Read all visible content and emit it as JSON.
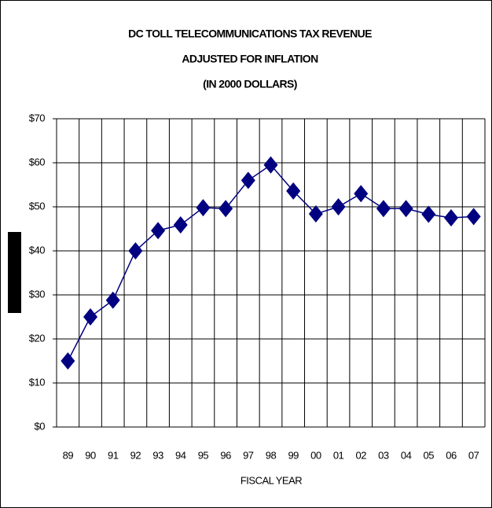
{
  "chart_data": {
    "type": "line",
    "title": [
      "DC TOLL TELECOMMUNICATIONS TAX REVENUE",
      "ADJUSTED FOR INFLATION",
      "(IN 2000 DOLLARS)"
    ],
    "x_label": "FISCAL YEAR",
    "categories": [
      "89",
      "90",
      "91",
      "92",
      "93",
      "94",
      "95",
      "96",
      "97",
      "98",
      "99",
      "00",
      "01",
      "02",
      "03",
      "04",
      "05",
      "06",
      "07"
    ],
    "values": [
      15,
      25,
      28.8,
      40,
      44.6,
      45.9,
      49.8,
      49.6,
      56,
      59.5,
      53.6,
      48.4,
      50,
      53,
      49.6,
      49.6,
      48.3,
      47.5,
      47.8
    ],
    "color": "#000080",
    "ylim": [
      0,
      70
    ],
    "yticks": [
      {
        "value": 0,
        "label": "$0"
      },
      {
        "value": 10,
        "label": "$10"
      },
      {
        "value": 20,
        "label": "$20"
      },
      {
        "value": 30,
        "label": "$30"
      },
      {
        "value": 40,
        "label": "$40"
      },
      {
        "value": 50,
        "label": "$50"
      },
      {
        "value": 60,
        "label": "$60"
      },
      {
        "value": 70,
        "label": "$70"
      }
    ],
    "grid": true
  }
}
